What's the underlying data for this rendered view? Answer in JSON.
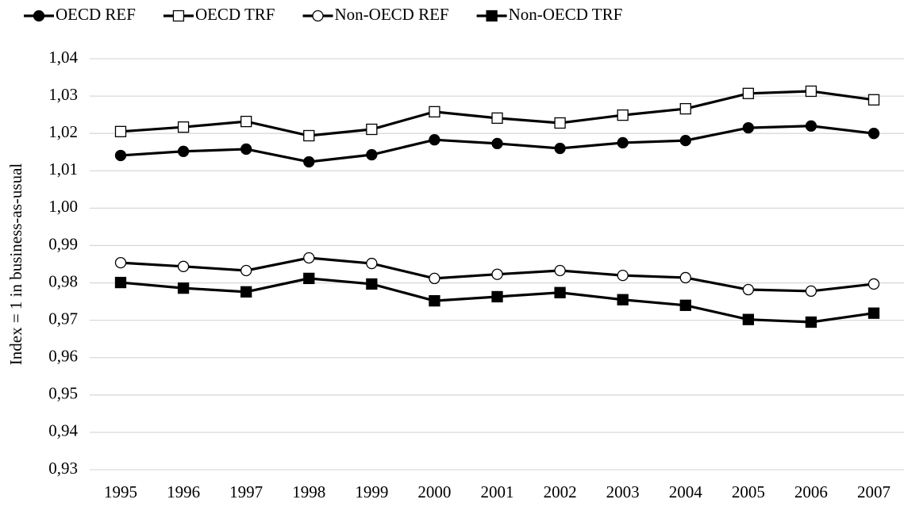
{
  "chart_data": {
    "type": "line",
    "y_label": "Index = 1 in business-as-usual",
    "categories": [
      "1995",
      "1996",
      "1997",
      "1998",
      "1999",
      "2000",
      "2001",
      "2002",
      "2003",
      "2004",
      "2005",
      "2006",
      "2007"
    ],
    "series": [
      {
        "name": "OECD REF",
        "color": "#000000",
        "marker": "circle",
        "marker_filled": true,
        "values": [
          1.0141,
          1.0152,
          1.0158,
          1.0124,
          1.0143,
          1.0183,
          1.0173,
          1.016,
          1.0175,
          1.0181,
          1.0215,
          1.022,
          1.02
        ]
      },
      {
        "name": "OECD TRF",
        "color": "#000000",
        "marker": "square",
        "marker_filled": false,
        "values": [
          1.0205,
          1.0217,
          1.0232,
          1.0194,
          1.0211,
          1.0258,
          1.0241,
          1.0228,
          1.0249,
          1.0266,
          1.0307,
          1.0313,
          1.029
        ]
      },
      {
        "name": "Non-OECD REF",
        "color": "#000000",
        "marker": "circle",
        "marker_filled": false,
        "values": [
          0.9854,
          0.9844,
          0.9833,
          0.9867,
          0.9852,
          0.9812,
          0.9823,
          0.9833,
          0.982,
          0.9814,
          0.9782,
          0.9778,
          0.9797
        ]
      },
      {
        "name": "Non-OECD TRF",
        "color": "#000000",
        "marker": "square",
        "marker_filled": true,
        "values": [
          0.9801,
          0.9786,
          0.9776,
          0.9812,
          0.9797,
          0.9752,
          0.9763,
          0.9774,
          0.9755,
          0.974,
          0.9702,
          0.9695,
          0.9719
        ]
      }
    ],
    "ylim": [
      0.93,
      1.04
    ],
    "yticks": [
      {
        "value": 0.93,
        "label": "0,93"
      },
      {
        "value": 0.94,
        "label": "0,94"
      },
      {
        "value": 0.95,
        "label": "0,95"
      },
      {
        "value": 0.96,
        "label": "0,96"
      },
      {
        "value": 0.97,
        "label": "0,97"
      },
      {
        "value": 0.98,
        "label": "0,98"
      },
      {
        "value": 0.99,
        "label": "0,99"
      },
      {
        "value": 1.0,
        "label": "1,00"
      },
      {
        "value": 1.01,
        "label": "1,01"
      },
      {
        "value": 1.02,
        "label": "1,02"
      },
      {
        "value": 1.03,
        "label": "1,03"
      },
      {
        "value": 1.04,
        "label": "1,04"
      }
    ],
    "grid": true,
    "legend": "top"
  }
}
